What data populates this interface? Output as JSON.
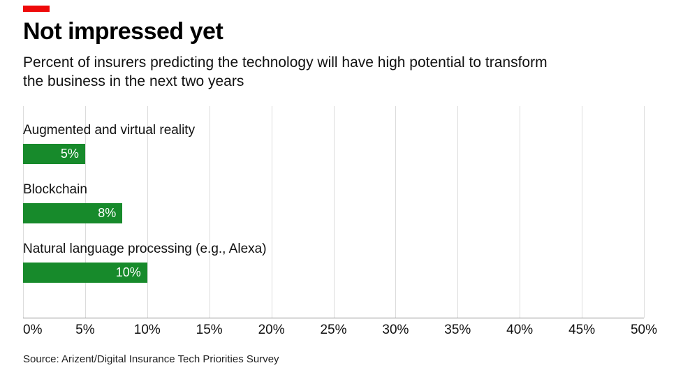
{
  "accent_color": "#ee0a0a",
  "header": {
    "title": "Not impressed yet",
    "subtitle": "Percent of insurers predicting the technology will have high potential to transform the business in the next two years"
  },
  "source": "Source: Arizent/Digital Insurance Tech Priorities Survey",
  "chart_data": {
    "type": "bar",
    "orientation": "horizontal",
    "title": "Not impressed yet",
    "subtitle": "Percent of insurers predicting the technology will have high potential to transform the business in the next two years",
    "categories": [
      "Augmented and virtual reality",
      "Blockchain",
      "Natural language processing (e.g., Alexa)"
    ],
    "values": [
      5,
      8,
      10
    ],
    "value_labels": [
      "5%",
      "8%",
      "10%"
    ],
    "xlabel": "",
    "ylabel": "",
    "xlim": [
      0,
      50
    ],
    "xticks": [
      0,
      5,
      10,
      15,
      20,
      25,
      30,
      35,
      40,
      45,
      50
    ],
    "xtick_labels": [
      "0%",
      "5%",
      "10%",
      "15%",
      "20%",
      "25%",
      "30%",
      "35%",
      "40%",
      "45%",
      "50%"
    ],
    "bar_color": "#178a2b",
    "grid": true,
    "legend": "none"
  }
}
